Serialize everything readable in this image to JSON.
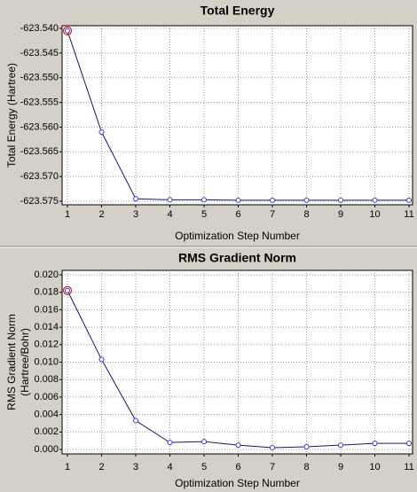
{
  "chart_data": [
    {
      "type": "line",
      "title": "Total Energy",
      "xlabel": "Optimization Step Number",
      "ylabel": "Total Energy (Hartree)",
      "x": [
        1,
        2,
        3,
        4,
        5,
        6,
        7,
        8,
        9,
        10,
        11
      ],
      "series": [
        {
          "color": "#1a1a5e",
          "values": [
            -623.5405,
            -623.561,
            -623.5745,
            -623.5747,
            -623.5747,
            -623.5748,
            -623.5748,
            -623.5748,
            -623.5748,
            -623.5748,
            -623.5748
          ]
        }
      ],
      "xlim": [
        1,
        11
      ],
      "xticks": [
        1,
        2,
        3,
        4,
        5,
        6,
        7,
        8,
        9,
        10,
        11
      ],
      "ylim": [
        -623.575,
        -623.54
      ],
      "yticks": [
        {
          "value": -623.575,
          "label": "-623.575"
        },
        {
          "value": -623.57,
          "label": "-623.570"
        },
        {
          "value": -623.565,
          "label": "-623.565"
        },
        {
          "value": -623.56,
          "label": "-623.560"
        },
        {
          "value": -623.555,
          "label": "-623.555"
        },
        {
          "value": -623.55,
          "label": "-623.550"
        },
        {
          "value": -623.545,
          "label": "-623.545"
        },
        {
          "value": -623.54,
          "label": "-623.540"
        }
      ],
      "grid": true
    },
    {
      "type": "line",
      "title": "RMS Gradient Norm",
      "xlabel": "Optimization Step Number",
      "ylabel": [
        "RMS Gradient Norm",
        "(Hartree/Bohr)"
      ],
      "x": [
        1,
        2,
        3,
        4,
        5,
        6,
        7,
        8,
        9,
        10,
        11
      ],
      "series": [
        {
          "color": "#1a1a5e",
          "values": [
            0.0182,
            0.0103,
            0.0033,
            0.0008,
            0.0009,
            0.0005,
            0.0002,
            0.0003,
            0.0005,
            0.0007,
            0.0007
          ]
        }
      ],
      "xlim": [
        1,
        11
      ],
      "xticks": [
        1,
        2,
        3,
        4,
        5,
        6,
        7,
        8,
        9,
        10,
        11
      ],
      "ylim": [
        0,
        0.02
      ],
      "yticks": [
        {
          "value": 0,
          "label": "0.000"
        },
        {
          "value": 0.002,
          "label": "0.002"
        },
        {
          "value": 0.004,
          "label": "0.004"
        },
        {
          "value": 0.006,
          "label": "0.006"
        },
        {
          "value": 0.008,
          "label": "0.008"
        },
        {
          "value": 0.01,
          "label": "0.010"
        },
        {
          "value": 0.012,
          "label": "0.012"
        },
        {
          "value": 0.014,
          "label": "0.014"
        },
        {
          "value": 0.016,
          "label": "0.016"
        },
        {
          "value": 0.018,
          "label": "0.018"
        },
        {
          "value": 0.02,
          "label": "0.020"
        }
      ],
      "grid": true
    }
  ]
}
